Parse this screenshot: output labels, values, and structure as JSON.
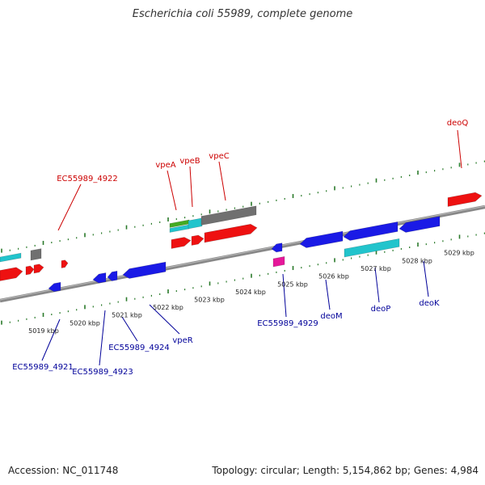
{
  "title": "Escherichia coli 55989, complete genome",
  "footer": {
    "accession": "Accession: NC_011748",
    "summary": "Topology: circular; Length: 5,154,862 bp; Genes: 4,984"
  },
  "colors": {
    "forward_label": "#cc0000",
    "reverse_label": "#000099",
    "cds_forward": "#ee1111",
    "cds_reverse": "#1a1ae6",
    "backbone": "#888888",
    "tick": "#2a7a2a",
    "cyan": "#22c4cc",
    "gray": "#707070",
    "green": "#44aa22",
    "magenta": "#e6189a"
  },
  "forward_genes": [
    {
      "name": "EC55989_4922"
    },
    {
      "name": "vpeA"
    },
    {
      "name": "vpeB"
    },
    {
      "name": "vpeC"
    },
    {
      "name": "deoQ"
    }
  ],
  "reverse_genes": [
    {
      "name": "EC55989_4921"
    },
    {
      "name": "EC55989_4923"
    },
    {
      "name": "EC55989_4924"
    },
    {
      "name": "vpeR"
    },
    {
      "name": "EC55989_4929"
    },
    {
      "name": "deoM"
    },
    {
      "name": "deoP"
    },
    {
      "name": "deoK"
    }
  ],
  "kbp_labels": [
    "5019 kbp",
    "5020 kbp",
    "5021 kbp",
    "5022 kbp",
    "5023 kbp",
    "5024 kbp",
    "5025 kbp",
    "5026 kbp",
    "5027 kbp",
    "5028 kbp",
    "5029 kbp"
  ]
}
